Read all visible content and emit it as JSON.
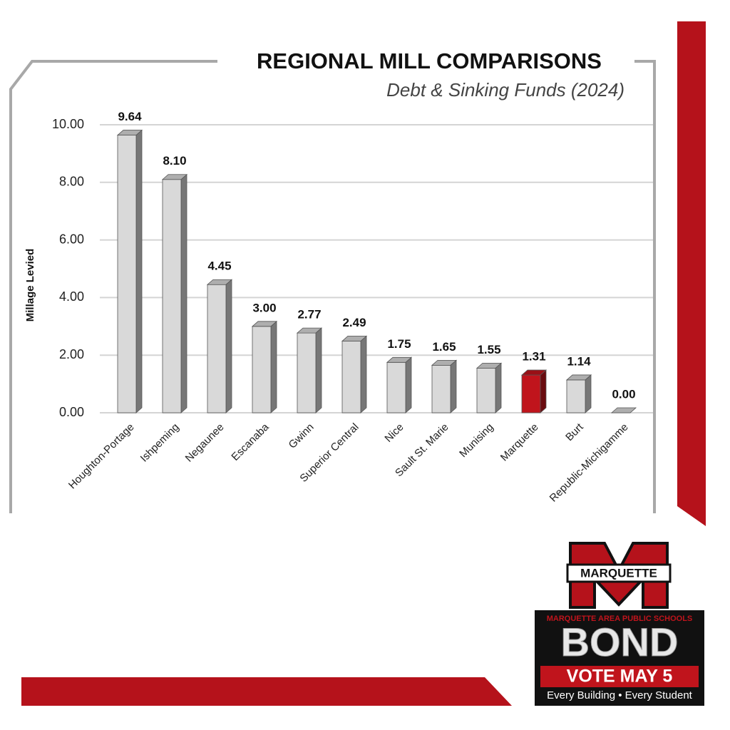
{
  "chart_data": {
    "type": "bar3d",
    "title": "REGIONAL MILL COMPARISONS",
    "subtitle": "Debt & Sinking Funds (2024)",
    "y_label": "Millage Levied",
    "categories": [
      "Houghton-Portage",
      "Ishpeming",
      "Negaunee",
      "Escanaba",
      "Gwinn",
      "Superior Central",
      "Nice",
      "Sault St. Marie",
      "Munising",
      "Marquette",
      "Burt",
      "Republic-Michigamme"
    ],
    "values": [
      9.64,
      8.1,
      4.45,
      3.0,
      2.77,
      2.49,
      1.75,
      1.65,
      1.55,
      1.31,
      1.14,
      0.0
    ],
    "value_labels": [
      "9.64",
      "8.10",
      "4.45",
      "3.00",
      "2.77",
      "2.49",
      "1.75",
      "1.65",
      "1.55",
      "1.31",
      "1.14",
      "0.00"
    ],
    "colors": [
      "#d9d9d9",
      "#d9d9d9",
      "#d9d9d9",
      "#d9d9d9",
      "#d9d9d9",
      "#d9d9d9",
      "#d9d9d9",
      "#d9d9d9",
      "#d9d9d9",
      "#c0141c",
      "#d9d9d9",
      "#d9d9d9"
    ],
    "ylim": [
      0,
      10
    ],
    "yticks": [
      {
        "value": 0,
        "label": "0.00"
      },
      {
        "value": 2,
        "label": "2.00"
      },
      {
        "value": 4,
        "label": "4.00"
      },
      {
        "value": 6,
        "label": "6.00"
      },
      {
        "value": 8,
        "label": "8.00"
      },
      {
        "value": 10,
        "label": "10.00"
      }
    ],
    "grid": true
  },
  "logo": {
    "emblem": "MARQUETTE",
    "district": "MARQUETTE AREA PUBLIC SCHOOLS",
    "word": "BOND",
    "vote": "VOTE MAY 5",
    "tagline": "Every Building • Every Student"
  }
}
